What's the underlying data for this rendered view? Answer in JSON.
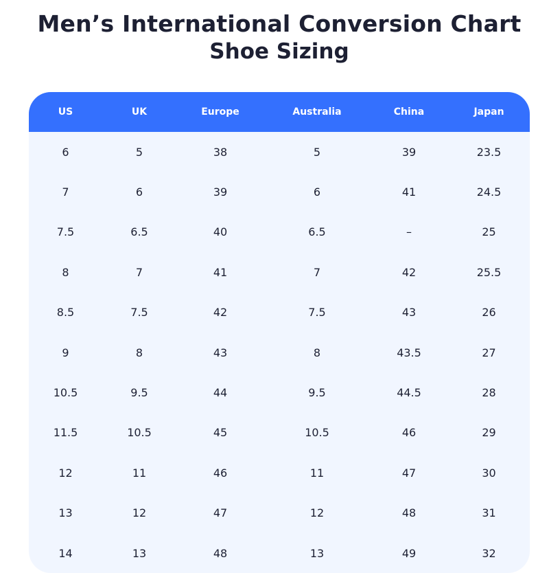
{
  "header": {
    "title": "Men’s International Conversion Chart",
    "subtitle": "Shoe Sizing"
  },
  "table": {
    "columns": [
      "US",
      "UK",
      "Europe",
      "Australia",
      "China",
      "Japan"
    ],
    "rows": [
      [
        "6",
        "5",
        "38",
        "5",
        "39",
        "23.5"
      ],
      [
        "7",
        "6",
        "39",
        "6",
        "41",
        "24.5"
      ],
      [
        "7.5",
        "6.5",
        "40",
        "6.5",
        "–",
        "25"
      ],
      [
        "8",
        "7",
        "41",
        "7",
        "42",
        "25.5"
      ],
      [
        "8.5",
        "7.5",
        "42",
        "7.5",
        "43",
        "26"
      ],
      [
        "9",
        "8",
        "43",
        "8",
        "43.5",
        "27"
      ],
      [
        "10.5",
        "9.5",
        "44",
        "9.5",
        "44.5",
        "28"
      ],
      [
        "11.5",
        "10.5",
        "45",
        "10.5",
        "46",
        "29"
      ],
      [
        "12",
        "11",
        "46",
        "11",
        "47",
        "30"
      ],
      [
        "13",
        "12",
        "47",
        "12",
        "48",
        "31"
      ],
      [
        "14",
        "13",
        "48",
        "13",
        "49",
        "32"
      ]
    ]
  },
  "colors": {
    "header_bg": "#3470fe",
    "body_bg": "#f1f6ff",
    "text": "#1d2033"
  }
}
